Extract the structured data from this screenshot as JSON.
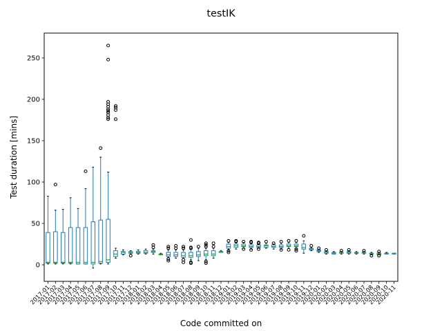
{
  "chart_data": {
    "type": "boxplot",
    "title": "testIK",
    "xlabel": "Code committed on",
    "ylabel": "Test duration [mins]",
    "ylim": [
      -20,
      280
    ],
    "yticks": [
      0,
      50,
      100,
      150,
      200,
      250
    ],
    "grid": false,
    "legend": "none",
    "colors": {
      "box": "#1f77b4",
      "median": "#2ca02c",
      "flier": "#000000"
    },
    "categories": [
      "2017-01",
      "2017-02",
      "2017-03",
      "2017-04",
      "2017-05",
      "2017-06",
      "2017-07",
      "2017-08",
      "2017-09",
      "2017-10",
      "2017-11",
      "2017-12",
      "2018-01",
      "2018-02",
      "2018-03",
      "2018-04",
      "2018-05",
      "2018-06",
      "2018-07",
      "2018-08",
      "2018-09",
      "2018-10",
      "2018-11",
      "2018-12",
      "2019-01",
      "2019-02",
      "2019-03",
      "2019-04",
      "2019-05",
      "2019-06",
      "2019-07",
      "2019-08",
      "2019-09",
      "2019-10",
      "2019-11",
      "2019-12",
      "2020-01",
      "2020-02",
      "2020-03",
      "2020-04",
      "2020-05",
      "2020-06",
      "2020-07",
      "2020-08",
      "2020-09",
      "2020-10",
      "2020-11"
    ],
    "boxes": [
      {
        "whislo": 1,
        "q1": 2,
        "med": 3,
        "q3": 39,
        "whishi": 83,
        "fliers": []
      },
      {
        "whislo": 1,
        "q1": 2,
        "med": 3,
        "q3": 40,
        "whishi": 66,
        "fliers": [
          97
        ]
      },
      {
        "whislo": 1,
        "q1": 2,
        "med": 3,
        "q3": 39,
        "whishi": 67,
        "fliers": []
      },
      {
        "whislo": 1,
        "q1": 2,
        "med": 3,
        "q3": 45,
        "whishi": 81,
        "fliers": []
      },
      {
        "whislo": 1,
        "q1": 1,
        "med": 3,
        "q3": 45,
        "whishi": 68,
        "fliers": []
      },
      {
        "whislo": 1,
        "q1": 1,
        "med": 3,
        "q3": 45,
        "whishi": 92,
        "fliers": [
          113
        ]
      },
      {
        "whislo": -4,
        "q1": 1,
        "med": 3,
        "q3": 52,
        "whishi": 118,
        "fliers": []
      },
      {
        "whislo": 1,
        "q1": 2,
        "med": 4,
        "q3": 54,
        "whishi": 130,
        "fliers": [
          141
        ]
      },
      {
        "whislo": 1,
        "q1": 3,
        "med": 6,
        "q3": 55,
        "whishi": 112,
        "fliers": [
          265,
          248,
          197,
          194,
          191,
          188,
          186,
          184,
          181,
          178,
          176
        ]
      },
      {
        "whislo": 8,
        "q1": 10,
        "med": 13,
        "q3": 17,
        "whishi": 20,
        "fliers": [
          176,
          187,
          190,
          192
        ]
      },
      {
        "whislo": 12,
        "q1": 13,
        "med": 15,
        "q3": 16,
        "whishi": 18,
        "fliers": []
      },
      {
        "whislo": 13,
        "q1": 14,
        "med": 15,
        "q3": 16,
        "whishi": 17,
        "fliers": [
          11
        ]
      },
      {
        "whislo": 13,
        "q1": 14,
        "med": 15,
        "q3": 16,
        "whishi": 18,
        "fliers": []
      },
      {
        "whislo": 13,
        "q1": 14,
        "med": 15,
        "q3": 17,
        "whishi": 19,
        "fliers": []
      },
      {
        "whislo": 13,
        "q1": 15,
        "med": 16,
        "q3": 17,
        "whishi": 19,
        "fliers": [
          21,
          24
        ]
      },
      {
        "whislo": 12,
        "q1": 12,
        "med": 13,
        "q3": 13,
        "whishi": 14,
        "fliers": []
      },
      {
        "whislo": 9,
        "q1": 10,
        "med": 12,
        "q3": 15,
        "whishi": 18,
        "fliers": [
          5,
          7,
          20,
          22
        ]
      },
      {
        "whislo": 8,
        "q1": 10,
        "med": 12,
        "q3": 15,
        "whishi": 18,
        "fliers": [
          20,
          23
        ]
      },
      {
        "whislo": 8,
        "q1": 9,
        "med": 11,
        "q3": 15,
        "whishi": 18,
        "fliers": [
          3,
          6,
          20,
          22
        ]
      },
      {
        "whislo": 6,
        "q1": 9,
        "med": 11,
        "q3": 15,
        "whishi": 19,
        "fliers": [
          2,
          3,
          20,
          21,
          30
        ]
      },
      {
        "whislo": 5,
        "q1": 10,
        "med": 12,
        "q3": 16,
        "whishi": 20,
        "fliers": [
          22
        ]
      },
      {
        "whislo": 6,
        "q1": 11,
        "med": 13,
        "q3": 17,
        "whishi": 20,
        "fliers": [
          2,
          4,
          22,
          24,
          26
        ]
      },
      {
        "whislo": 8,
        "q1": 11,
        "med": 13,
        "q3": 17,
        "whishi": 20,
        "fliers": [
          22,
          26
        ]
      },
      {
        "whislo": 15,
        "q1": 15,
        "med": 16,
        "q3": 16,
        "whishi": 17,
        "fliers": []
      },
      {
        "whislo": 18,
        "q1": 20,
        "med": 22,
        "q3": 25,
        "whishi": 27,
        "fliers": [
          15,
          17,
          29
        ]
      },
      {
        "whislo": 19,
        "q1": 21,
        "med": 23,
        "q3": 25,
        "whishi": 27,
        "fliers": [
          28,
          29
        ]
      },
      {
        "whislo": 20,
        "q1": 22,
        "med": 23,
        "q3": 25,
        "whishi": 27,
        "fliers": [
          19,
          28
        ]
      },
      {
        "whislo": 19,
        "q1": 21,
        "med": 22,
        "q3": 24,
        "whishi": 26,
        "fliers": [
          18,
          27,
          28
        ]
      },
      {
        "whislo": 20,
        "q1": 21,
        "med": 22,
        "q3": 24,
        "whishi": 25,
        "fliers": [
          19,
          26,
          27
        ]
      },
      {
        "whislo": 20,
        "q1": 21,
        "med": 23,
        "q3": 24,
        "whishi": 26,
        "fliers": [
          28
        ]
      },
      {
        "whislo": 19,
        "q1": 21,
        "med": 22,
        "q3": 24,
        "whishi": 25,
        "fliers": [
          26
        ]
      },
      {
        "whislo": 19,
        "q1": 21,
        "med": 22,
        "q3": 24,
        "whishi": 26,
        "fliers": [
          18,
          28
        ]
      },
      {
        "whislo": 20,
        "q1": 22,
        "med": 23,
        "q3": 25,
        "whishi": 27,
        "fliers": [
          18,
          29
        ]
      },
      {
        "whislo": 20,
        "q1": 22,
        "med": 23,
        "q3": 25,
        "whishi": 27,
        "fliers": [
          17,
          19,
          29
        ]
      },
      {
        "whislo": 14,
        "q1": 19,
        "med": 21,
        "q3": 25,
        "whishi": 29,
        "fliers": [
          35
        ]
      },
      {
        "whislo": 17,
        "q1": 18,
        "med": 19,
        "q3": 20,
        "whishi": 21,
        "fliers": [
          23
        ]
      },
      {
        "whislo": 15,
        "q1": 16,
        "med": 17,
        "q3": 18,
        "whishi": 19,
        "fliers": [
          20
        ]
      },
      {
        "whislo": 13,
        "q1": 14,
        "med": 15,
        "q3": 16,
        "whishi": 17,
        "fliers": [
          18
        ]
      },
      {
        "whislo": 13,
        "q1": 13,
        "med": 14,
        "q3": 15,
        "whishi": 16,
        "fliers": []
      },
      {
        "whislo": 13,
        "q1": 14,
        "med": 15,
        "q3": 15,
        "whishi": 16,
        "fliers": [
          17
        ]
      },
      {
        "whislo": 13,
        "q1": 14,
        "med": 15,
        "q3": 16,
        "whishi": 17,
        "fliers": [
          18
        ]
      },
      {
        "whislo": 13,
        "q1": 14,
        "med": 14,
        "q3": 15,
        "whishi": 16,
        "fliers": []
      },
      {
        "whislo": 13,
        "q1": 14,
        "med": 15,
        "q3": 15,
        "whishi": 16,
        "fliers": [
          17
        ]
      },
      {
        "whislo": 12,
        "q1": 13,
        "med": 13,
        "q3": 14,
        "whishi": 15,
        "fliers": [
          11
        ]
      },
      {
        "whislo": 12,
        "q1": 12,
        "med": 13,
        "q3": 14,
        "whishi": 15,
        "fliers": [
          16,
          11
        ]
      },
      {
        "whislo": 13,
        "q1": 13,
        "med": 14,
        "q3": 14,
        "whishi": 15,
        "fliers": []
      },
      {
        "whislo": 13,
        "q1": 13,
        "med": 14,
        "q3": 14,
        "whishi": 14,
        "fliers": []
      }
    ]
  }
}
